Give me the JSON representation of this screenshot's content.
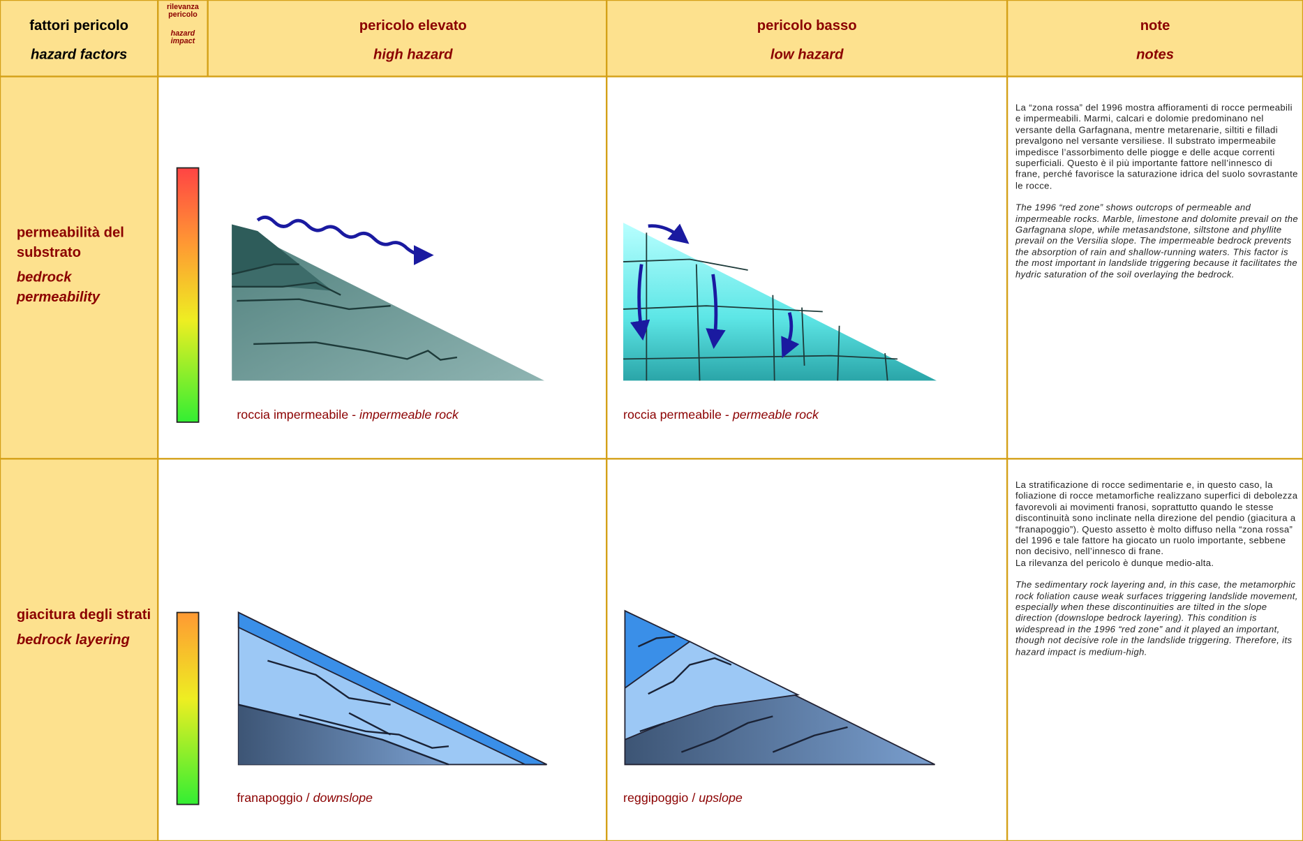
{
  "header": {
    "factor": {
      "it": "fattori pericolo",
      "en": "hazard factors"
    },
    "impact": {
      "it": "rilevanza pericolo",
      "en": "hazard impact"
    },
    "high": {
      "it": "pericolo elevato",
      "en": "high hazard"
    },
    "low": {
      "it": "pericolo basso",
      "en": "low hazard"
    },
    "notes": {
      "it": "note",
      "en": "notes"
    }
  },
  "rows": [
    {
      "factor_it": "permeabilità del substrato",
      "factor_en": "bedrock permeability",
      "high_caption_it": "roccia impermeabile -",
      "high_caption_en": "impermeable rock",
      "low_caption_it": "roccia permeabile -",
      "low_caption_en": "permeable rock",
      "note_it": [
        "La “zona rossa” del 1996 mostra affioramenti di rocce permeabili e impermeabili. Marmi, calcari e dolomie predominano nel versante della Garfagnana, mentre metarenarie, siltiti e filladi prevalgono nel versante versiliese. Il substrato impermeabile impedisce l’assorbimento delle piogge e delle acque correnti superficiali. Questo è il più importante fattore nell’innesco di frane, perché favorisce la saturazione idrica del suolo sovrastante le rocce."
      ],
      "note_en": "The 1996 “red zone” shows outcrops of permeable and impermeable rocks. Marble, limestone and dolomite prevail on the Garfagnana slope, while metasandstone, siltstone and phyllite prevail on the Versilia slope. The impermeable bedrock prevents the absorption of rain and shallow-running waters. This factor is the most important in landslide triggering because it facilitates the hydric saturation of the soil overlaying the bedrock."
    },
    {
      "factor_it": "giacitura degli strati",
      "factor_en": "bedrock layering",
      "high_caption_it": "franapoggio /",
      "high_caption_en": "downslope",
      "low_caption_it": "reggipoggio /",
      "low_caption_en": "upslope",
      "note_it": [
        "La stratificazione di rocce sedimentarie e, in questo caso, la foliazione di rocce metamorfiche realizzano superfici di debolezza favorevoli ai movimenti franosi, soprattutto quando le stesse discontinuità sono inclinate nella direzione del pendio (giacitura a “franapoggio”). Questo assetto è molto diffuso nella “zona rossa” del 1996 e tale fattore ha giocato un ruolo importante, sebbene non decisivo, nell’innesco di frane.",
        "La rilevanza del pericolo è dunque medio-alta."
      ],
      "note_en": "The sedimentary rock layering and, in this case, the metamorphic rock foliation cause weak surfaces triggering landslide movement, especially when these discontinuities are tilted in the slope direction (downslope bedrock layering). This condition is widespread in the 1996 “red zone” and it played an important, though not decisive role in the landslide triggering. Therefore, its hazard impact is medium-high."
    }
  ]
}
